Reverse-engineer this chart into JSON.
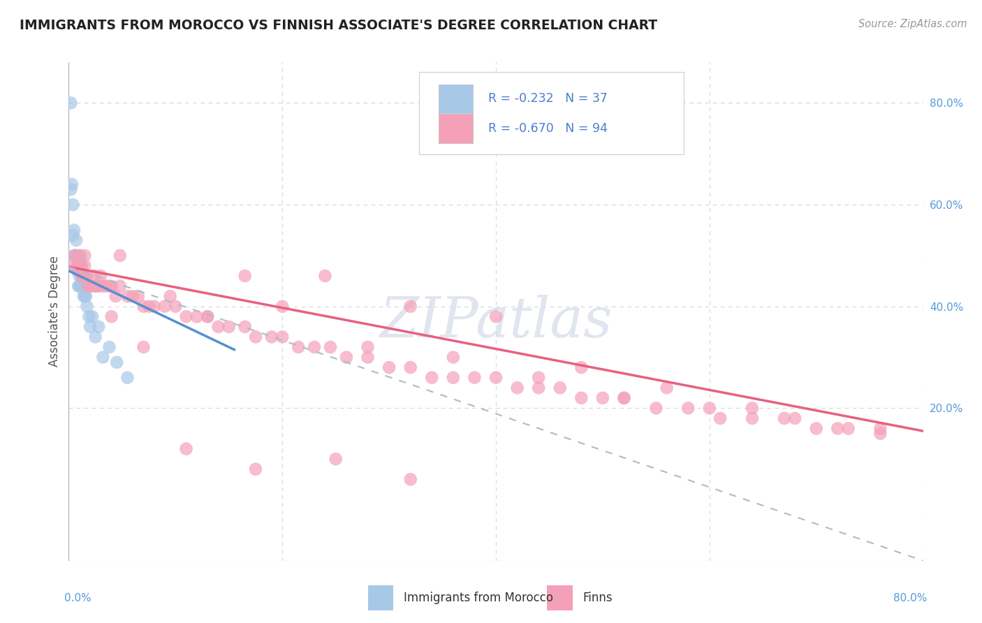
{
  "title": "IMMIGRANTS FROM MOROCCO VS FINNISH ASSOCIATE'S DEGREE CORRELATION CHART",
  "source_text": "Source: ZipAtlas.com",
  "ylabel": "Associate's Degree",
  "legend_entries": [
    {
      "label": "R = -0.232   N = 37",
      "color": "#a8c4e0"
    },
    {
      "label": "R = -0.670   N = 94",
      "color": "#f4a7b9"
    }
  ],
  "legend_labels": [
    "Immigrants from Morocco",
    "Finns"
  ],
  "xmin": 0.0,
  "xmax": 0.8,
  "ymin": -0.1,
  "ymax": 0.88,
  "x_ticks": [
    0.0,
    0.2,
    0.4,
    0.6,
    0.8
  ],
  "x_tick_labels": [
    "0.0%",
    "20.0%",
    "40.0%",
    "60.0%",
    "80.0%"
  ],
  "y_ticks_right": [
    0.2,
    0.4,
    0.6,
    0.8
  ],
  "y_tick_labels_right": [
    "20.0%",
    "40.0%",
    "60.0%",
    "80.0%"
  ],
  "background_color": "#ffffff",
  "grid_color": "#cccccc",
  "scatter_blue_color": "#a8c8e8",
  "scatter_pink_color": "#f4a0b8",
  "line_blue_color": "#5590d0",
  "line_pink_color": "#e86080",
  "line_dashed_color": "#aabbd0",
  "title_color": "#222222",
  "stats_color": "#4a7fcb",
  "watermark_color": "#d0d8e8",
  "blue_x": [
    0.002,
    0.003,
    0.004,
    0.004,
    0.005,
    0.005,
    0.006,
    0.007,
    0.007,
    0.008,
    0.008,
    0.009,
    0.01,
    0.01,
    0.011,
    0.011,
    0.012,
    0.012,
    0.013,
    0.013,
    0.014,
    0.015,
    0.015,
    0.016,
    0.016,
    0.017,
    0.018,
    0.019,
    0.02,
    0.022,
    0.025,
    0.028,
    0.032,
    0.038,
    0.045,
    0.055,
    0.002
  ],
  "blue_y": [
    0.8,
    0.64,
    0.54,
    0.6,
    0.55,
    0.5,
    0.5,
    0.53,
    0.5,
    0.48,
    0.47,
    0.44,
    0.46,
    0.44,
    0.5,
    0.44,
    0.44,
    0.48,
    0.44,
    0.46,
    0.42,
    0.44,
    0.42,
    0.42,
    0.44,
    0.4,
    0.44,
    0.38,
    0.36,
    0.38,
    0.34,
    0.36,
    0.3,
    0.32,
    0.29,
    0.26,
    0.63
  ],
  "pink_x": [
    0.004,
    0.006,
    0.008,
    0.01,
    0.01,
    0.011,
    0.012,
    0.013,
    0.014,
    0.015,
    0.016,
    0.017,
    0.018,
    0.02,
    0.022,
    0.024,
    0.026,
    0.028,
    0.03,
    0.032,
    0.035,
    0.038,
    0.04,
    0.044,
    0.048,
    0.055,
    0.06,
    0.065,
    0.07,
    0.075,
    0.08,
    0.09,
    0.1,
    0.11,
    0.12,
    0.13,
    0.14,
    0.15,
    0.165,
    0.175,
    0.19,
    0.2,
    0.215,
    0.23,
    0.245,
    0.26,
    0.28,
    0.3,
    0.32,
    0.34,
    0.36,
    0.38,
    0.4,
    0.42,
    0.44,
    0.46,
    0.48,
    0.5,
    0.52,
    0.55,
    0.58,
    0.61,
    0.64,
    0.67,
    0.7,
    0.73,
    0.76,
    0.048,
    0.095,
    0.13,
    0.165,
    0.2,
    0.24,
    0.28,
    0.32,
    0.36,
    0.4,
    0.44,
    0.48,
    0.52,
    0.56,
    0.6,
    0.64,
    0.68,
    0.72,
    0.76,
    0.32,
    0.25,
    0.175,
    0.11,
    0.07,
    0.04,
    0.025,
    0.015
  ],
  "pink_y": [
    0.48,
    0.5,
    0.48,
    0.5,
    0.48,
    0.48,
    0.46,
    0.46,
    0.46,
    0.48,
    0.46,
    0.46,
    0.44,
    0.44,
    0.44,
    0.46,
    0.44,
    0.44,
    0.46,
    0.44,
    0.44,
    0.44,
    0.44,
    0.42,
    0.44,
    0.42,
    0.42,
    0.42,
    0.4,
    0.4,
    0.4,
    0.4,
    0.4,
    0.38,
    0.38,
    0.38,
    0.36,
    0.36,
    0.36,
    0.34,
    0.34,
    0.34,
    0.32,
    0.32,
    0.32,
    0.3,
    0.3,
    0.28,
    0.28,
    0.26,
    0.26,
    0.26,
    0.26,
    0.24,
    0.24,
    0.24,
    0.22,
    0.22,
    0.22,
    0.2,
    0.2,
    0.18,
    0.18,
    0.18,
    0.16,
    0.16,
    0.15,
    0.5,
    0.42,
    0.38,
    0.46,
    0.4,
    0.46,
    0.32,
    0.4,
    0.3,
    0.38,
    0.26,
    0.28,
    0.22,
    0.24,
    0.2,
    0.2,
    0.18,
    0.16,
    0.16,
    0.06,
    0.1,
    0.08,
    0.12,
    0.32,
    0.38,
    0.44,
    0.5
  ],
  "blue_line_x": [
    0.0,
    0.155
  ],
  "blue_line_y": [
    0.47,
    0.315
  ],
  "pink_line_x": [
    0.0,
    0.8
  ],
  "pink_line_y": [
    0.478,
    0.155
  ],
  "dash_line_x": [
    0.0,
    0.8
  ],
  "dash_line_y": [
    0.478,
    -0.1
  ]
}
